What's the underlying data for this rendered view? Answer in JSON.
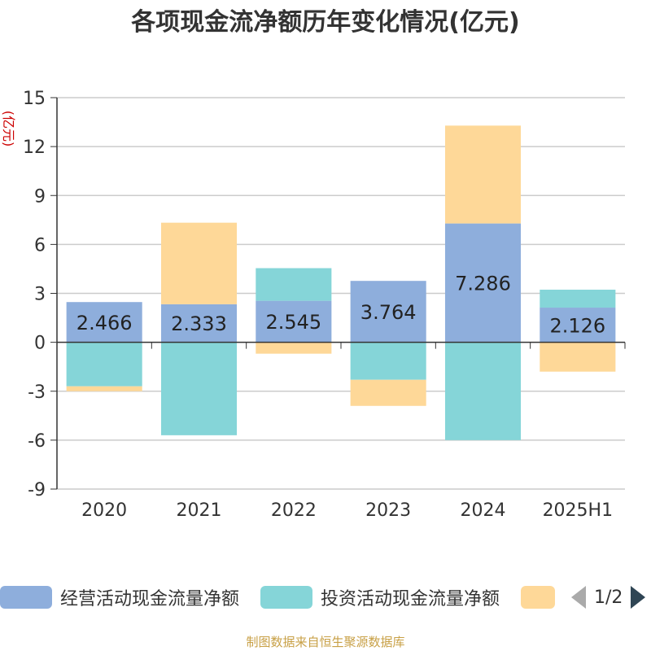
{
  "title": "各项现金流净额历年变化情况(亿元)",
  "unit_label": "(亿元)",
  "footer": "制图数据来自恒生聚源数据库",
  "legend": {
    "items": [
      {
        "label": "经营活动现金流量净额",
        "color": "#8eaedc"
      },
      {
        "label": "投资活动现金流量净额",
        "color": "#85d5d8"
      },
      {
        "label": "",
        "color": "#fed898"
      }
    ],
    "page_indicator": "1/2"
  },
  "chart_data": {
    "type": "bar",
    "stacked": true,
    "categories": [
      "2020",
      "2021",
      "2022",
      "2023",
      "2024",
      "2025H1"
    ],
    "series": [
      {
        "name": "经营活动现金流量净额",
        "color": "#8eaedc",
        "values": [
          2.466,
          2.333,
          2.545,
          3.764,
          7.286,
          2.126
        ],
        "labels": [
          "2.466",
          "2.333",
          "2.545",
          "3.764",
          "7.286",
          "2.126"
        ]
      },
      {
        "name": "投资活动现金流量净额",
        "color": "#85d5d8",
        "values": [
          -2.7,
          -5.7,
          2.0,
          -2.3,
          -6.0,
          1.1
        ]
      },
      {
        "color": "#fed898",
        "values": [
          -0.3,
          5.0,
          -0.7,
          -1.6,
          6.0,
          -1.8
        ]
      }
    ],
    "yticks": [
      15,
      12,
      9,
      6,
      3,
      0,
      -3,
      -6,
      -9
    ],
    "ylim": [
      -9,
      15
    ],
    "grid": true,
    "legend_position": "bottom"
  }
}
